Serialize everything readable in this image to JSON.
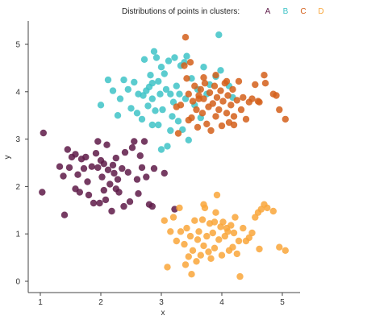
{
  "chart_data": {
    "type": "scatter",
    "title": "",
    "xlabel": "x",
    "ylabel": "y",
    "xlim": [
      0.8,
      5.3
    ],
    "ylim": [
      -0.2,
      5.45
    ],
    "xticks": [
      "1",
      "2",
      "3",
      "4",
      "5"
    ],
    "yticks": [
      "0",
      "1",
      "2",
      "3",
      "4",
      "5"
    ],
    "grid": false,
    "legend": {
      "title": "Distributions of points in clusters:",
      "placement": "top-right",
      "entries": [
        "A",
        "B",
        "C",
        "D"
      ]
    },
    "series": [
      {
        "name": "A",
        "color": "#5e1a48",
        "points": [
          [
            1.05,
            3.13
          ],
          [
            1.03,
            1.88
          ],
          [
            1.32,
            2.42
          ],
          [
            1.38,
            2.22
          ],
          [
            1.4,
            1.4
          ],
          [
            1.45,
            2.78
          ],
          [
            1.48,
            2.4
          ],
          [
            1.52,
            2.62
          ],
          [
            1.58,
            2.68
          ],
          [
            1.62,
            2.25
          ],
          [
            1.65,
            1.88
          ],
          [
            1.72,
            2.38
          ],
          [
            1.78,
            2.1
          ],
          [
            1.8,
            1.82
          ],
          [
            1.85,
            2.42
          ],
          [
            1.88,
            1.65
          ],
          [
            1.92,
            2.7
          ],
          [
            1.95,
            2.4
          ],
          [
            1.98,
            1.65
          ],
          [
            2.0,
            2.55
          ],
          [
            2.02,
            2.2
          ],
          [
            2.05,
            1.92
          ],
          [
            2.08,
            1.72
          ],
          [
            2.1,
            2.88
          ],
          [
            2.12,
            2.35
          ],
          [
            2.15,
            2.05
          ],
          [
            2.18,
            1.48
          ],
          [
            2.2,
            2.45
          ],
          [
            2.22,
            2.28
          ],
          [
            2.25,
            2.6
          ],
          [
            2.28,
            2.15
          ],
          [
            2.3,
            1.88
          ],
          [
            2.35,
            2.38
          ],
          [
            2.4,
            2.72
          ],
          [
            2.45,
            2.3
          ],
          [
            2.48,
            1.68
          ],
          [
            2.52,
            2.82
          ],
          [
            2.55,
            2.95
          ],
          [
            2.6,
            2.15
          ],
          [
            2.62,
            1.85
          ],
          [
            2.65,
            2.65
          ],
          [
            2.68,
            2.4
          ],
          [
            2.72,
            2.95
          ],
          [
            2.75,
            2.2
          ],
          [
            2.8,
            1.62
          ],
          [
            2.85,
            1.58
          ],
          [
            2.88,
            2.38
          ],
          [
            3.05,
            2.28
          ],
          [
            1.95,
            2.95
          ],
          [
            1.68,
            2.58
          ],
          [
            2.38,
            1.58
          ],
          [
            2.05,
            2.48
          ],
          [
            1.75,
            2.62
          ],
          [
            1.58,
            1.95
          ],
          [
            2.25,
            1.95
          ],
          [
            3.22,
            1.52
          ]
        ]
      },
      {
        "name": "B",
        "color": "#3ec3c7",
        "points": [
          [
            2.0,
            3.72
          ],
          [
            2.12,
            4.25
          ],
          [
            2.2,
            4.02
          ],
          [
            2.28,
            3.5
          ],
          [
            2.32,
            3.85
          ],
          [
            2.38,
            4.25
          ],
          [
            2.45,
            4.05
          ],
          [
            2.5,
            3.65
          ],
          [
            2.55,
            4.2
          ],
          [
            2.62,
            3.95
          ],
          [
            2.68,
            3.42
          ],
          [
            2.72,
            4.68
          ],
          [
            2.75,
            4.02
          ],
          [
            2.78,
            3.7
          ],
          [
            2.8,
            4.1
          ],
          [
            2.82,
            4.35
          ],
          [
            2.85,
            3.3
          ],
          [
            2.85,
            3.85
          ],
          [
            2.88,
            4.85
          ],
          [
            2.9,
            3.6
          ],
          [
            2.92,
            4.72
          ],
          [
            2.95,
            3.3
          ],
          [
            2.98,
            3.95
          ],
          [
            3.0,
            4.52
          ],
          [
            3.02,
            3.62
          ],
          [
            3.05,
            4.38
          ],
          [
            3.08,
            4.05
          ],
          [
            3.1,
            2.85
          ],
          [
            3.12,
            4.65
          ],
          [
            3.15,
            3.95
          ],
          [
            3.18,
            3.48
          ],
          [
            3.22,
            4.72
          ],
          [
            3.25,
            4.12
          ],
          [
            3.28,
            3.38
          ],
          [
            3.3,
            3.95
          ],
          [
            3.32,
            4.55
          ],
          [
            3.35,
            3.2
          ],
          [
            3.38,
            4.62
          ],
          [
            3.4,
            3.85
          ],
          [
            3.42,
            4.75
          ],
          [
            3.45,
            2.98
          ],
          [
            3.5,
            4.28
          ],
          [
            3.55,
            3.72
          ],
          [
            3.6,
            4.05
          ],
          [
            3.65,
            3.45
          ],
          [
            3.7,
            4.52
          ],
          [
            3.75,
            3.95
          ],
          [
            3.8,
            4.15
          ],
          [
            3.9,
            4.32
          ],
          [
            3.95,
            5.2
          ],
          [
            3.98,
            4.45
          ],
          [
            4.12,
            4.12
          ],
          [
            4.18,
            3.88
          ],
          [
            2.85,
            4.18
          ],
          [
            2.7,
            3.92
          ],
          [
            3.0,
            2.78
          ],
          [
            2.6,
            3.55
          ],
          [
            3.2,
            3.78
          ],
          [
            2.95,
            4.22
          ],
          [
            3.15,
            3.18
          ]
        ]
      },
      {
        "name": "C",
        "color": "#d35f1a",
        "points": [
          [
            3.28,
            3.12
          ],
          [
            3.32,
            3.72
          ],
          [
            3.38,
            4.55
          ],
          [
            3.4,
            5.15
          ],
          [
            3.42,
            4.28
          ],
          [
            3.45,
            3.95
          ],
          [
            3.48,
            4.62
          ],
          [
            3.5,
            3.45
          ],
          [
            3.52,
            3.8
          ],
          [
            3.55,
            4.12
          ],
          [
            3.58,
            3.62
          ],
          [
            3.6,
            3.25
          ],
          [
            3.62,
            3.92
          ],
          [
            3.65,
            4.05
          ],
          [
            3.68,
            3.55
          ],
          [
            3.7,
            3.85
          ],
          [
            3.72,
            4.18
          ],
          [
            3.75,
            3.32
          ],
          [
            3.78,
            3.68
          ],
          [
            3.8,
            3.98
          ],
          [
            3.82,
            3.18
          ],
          [
            3.85,
            3.75
          ],
          [
            3.88,
            4.12
          ],
          [
            3.9,
            3.48
          ],
          [
            3.92,
            3.88
          ],
          [
            3.95,
            3.62
          ],
          [
            3.98,
            4.02
          ],
          [
            4.0,
            3.28
          ],
          [
            4.02,
            3.8
          ],
          [
            4.05,
            4.18
          ],
          [
            4.08,
            3.55
          ],
          [
            4.1,
            3.92
          ],
          [
            4.12,
            3.35
          ],
          [
            4.15,
            3.72
          ],
          [
            4.18,
            4.05
          ],
          [
            4.2,
            3.48
          ],
          [
            4.25,
            3.82
          ],
          [
            4.28,
            4.22
          ],
          [
            4.32,
            3.62
          ],
          [
            4.35,
            3.88
          ],
          [
            4.4,
            3.42
          ],
          [
            4.45,
            3.78
          ],
          [
            4.5,
            3.85
          ],
          [
            4.55,
            4.15
          ],
          [
            4.6,
            3.8
          ],
          [
            4.62,
            3.78
          ],
          [
            4.7,
            4.35
          ],
          [
            4.72,
            4.18
          ],
          [
            4.85,
            3.95
          ],
          [
            4.9,
            3.92
          ],
          [
            4.95,
            3.62
          ],
          [
            5.05,
            3.42
          ],
          [
            3.25,
            3.68
          ],
          [
            3.45,
            3.4
          ],
          [
            4.2,
            3.3
          ],
          [
            3.7,
            4.3
          ],
          [
            3.9,
            4.35
          ],
          [
            3.62,
            3.85
          ],
          [
            4.08,
            4.22
          ]
        ]
      },
      {
        "name": "D",
        "color": "#f9a63a",
        "points": [
          [
            3.05,
            1.28
          ],
          [
            3.1,
            0.3
          ],
          [
            3.15,
            1.05
          ],
          [
            3.2,
            1.35
          ],
          [
            3.25,
            0.85
          ],
          [
            3.3,
            1.55
          ],
          [
            3.32,
            1.05
          ],
          [
            3.38,
            0.78
          ],
          [
            3.4,
            0.35
          ],
          [
            3.42,
            1.12
          ],
          [
            3.45,
            0.52
          ],
          [
            3.48,
            0.95
          ],
          [
            3.5,
            0.15
          ],
          [
            3.52,
            0.65
          ],
          [
            3.55,
            1.28
          ],
          [
            3.58,
            0.42
          ],
          [
            3.6,
            0.88
          ],
          [
            3.62,
            1.05
          ],
          [
            3.65,
            0.55
          ],
          [
            3.68,
            1.3
          ],
          [
            3.7,
            0.75
          ],
          [
            3.72,
            1.55
          ],
          [
            3.75,
            0.95
          ],
          [
            3.78,
            0.62
          ],
          [
            3.8,
            1.22
          ],
          [
            3.82,
            0.48
          ],
          [
            3.85,
            1.02
          ],
          [
            3.88,
            0.7
          ],
          [
            3.9,
            1.45
          ],
          [
            3.92,
            1.82
          ],
          [
            3.95,
            0.88
          ],
          [
            3.98,
            1.15
          ],
          [
            4.0,
            0.55
          ],
          [
            4.02,
            1.25
          ],
          [
            4.05,
            0.95
          ],
          [
            4.08,
            1.12
          ],
          [
            4.1,
            1.05
          ],
          [
            4.12,
            0.65
          ],
          [
            4.15,
            1.18
          ],
          [
            4.18,
            0.72
          ],
          [
            4.2,
            1.02
          ],
          [
            4.22,
            1.35
          ],
          [
            4.25,
            0.58
          ],
          [
            4.28,
            0.85
          ],
          [
            4.3,
            0.1
          ],
          [
            4.35,
            1.12
          ],
          [
            4.4,
            0.85
          ],
          [
            4.45,
            0.92
          ],
          [
            4.5,
            1.02
          ],
          [
            4.55,
            1.35
          ],
          [
            4.6,
            1.45
          ],
          [
            4.65,
            1.52
          ],
          [
            4.7,
            1.62
          ],
          [
            4.75,
            1.55
          ],
          [
            4.85,
            1.48
          ],
          [
            4.95,
            0.72
          ],
          [
            5.05,
            0.65
          ],
          [
            4.62,
            0.68
          ],
          [
            3.7,
            1.62
          ],
          [
            3.88,
            1.25
          ]
        ]
      }
    ]
  }
}
